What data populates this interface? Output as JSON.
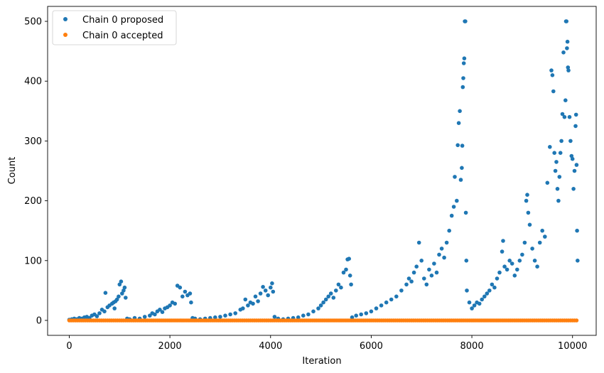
{
  "chart_data": {
    "type": "scatter",
    "title": "",
    "xlabel": "Iteration",
    "ylabel": "Count",
    "xlim": [
      -430,
      10470
    ],
    "ylim": [
      -25,
      525
    ],
    "xticks": [
      0,
      2000,
      4000,
      6000,
      8000,
      10000
    ],
    "yticks": [
      0,
      100,
      200,
      300,
      400,
      500
    ],
    "grid": false,
    "legend_position": "top-left",
    "colors": {
      "proposed": "#1f77b4",
      "accepted": "#ff7f0e"
    },
    "series": [
      {
        "name": "Chain 0 proposed",
        "color": "#1f77b4",
        "points": [
          [
            0,
            1
          ],
          [
            50,
            2
          ],
          [
            100,
            3
          ],
          [
            150,
            2
          ],
          [
            200,
            4
          ],
          [
            250,
            3
          ],
          [
            300,
            5
          ],
          [
            350,
            6
          ],
          [
            400,
            4
          ],
          [
            450,
            8
          ],
          [
            500,
            10
          ],
          [
            550,
            7
          ],
          [
            600,
            12
          ],
          [
            650,
            18
          ],
          [
            700,
            15
          ],
          [
            720,
            46
          ],
          [
            760,
            22
          ],
          [
            800,
            25
          ],
          [
            850,
            28
          ],
          [
            880,
            30
          ],
          [
            900,
            20
          ],
          [
            920,
            32
          ],
          [
            950,
            35
          ],
          [
            980,
            40
          ],
          [
            1000,
            60
          ],
          [
            1030,
            65
          ],
          [
            1050,
            45
          ],
          [
            1080,
            50
          ],
          [
            1100,
            55
          ],
          [
            1120,
            38
          ],
          [
            1150,
            3
          ],
          [
            1200,
            2
          ],
          [
            1300,
            4
          ],
          [
            1400,
            3
          ],
          [
            1500,
            6
          ],
          [
            1600,
            8
          ],
          [
            1650,
            12
          ],
          [
            1700,
            10
          ],
          [
            1750,
            15
          ],
          [
            1800,
            18
          ],
          [
            1850,
            14
          ],
          [
            1900,
            20
          ],
          [
            1950,
            22
          ],
          [
            2000,
            25
          ],
          [
            2050,
            30
          ],
          [
            2100,
            28
          ],
          [
            2150,
            58
          ],
          [
            2200,
            55
          ],
          [
            2250,
            40
          ],
          [
            2300,
            48
          ],
          [
            2350,
            42
          ],
          [
            2400,
            45
          ],
          [
            2420,
            30
          ],
          [
            2450,
            4
          ],
          [
            2500,
            3
          ],
          [
            2600,
            2
          ],
          [
            2700,
            3
          ],
          [
            2800,
            4
          ],
          [
            2900,
            5
          ],
          [
            3000,
            6
          ],
          [
            3100,
            8
          ],
          [
            3200,
            10
          ],
          [
            3300,
            12
          ],
          [
            3400,
            18
          ],
          [
            3450,
            20
          ],
          [
            3500,
            35
          ],
          [
            3550,
            25
          ],
          [
            3600,
            30
          ],
          [
            3650,
            28
          ],
          [
            3700,
            40
          ],
          [
            3750,
            32
          ],
          [
            3800,
            45
          ],
          [
            3850,
            56
          ],
          [
            3900,
            50
          ],
          [
            3950,
            42
          ],
          [
            4000,
            55
          ],
          [
            4030,
            62
          ],
          [
            4050,
            48
          ],
          [
            4080,
            6
          ],
          [
            4150,
            3
          ],
          [
            4250,
            2
          ],
          [
            4350,
            3
          ],
          [
            4450,
            4
          ],
          [
            4550,
            5
          ],
          [
            4650,
            8
          ],
          [
            4750,
            10
          ],
          [
            4850,
            15
          ],
          [
            4950,
            20
          ],
          [
            5000,
            25
          ],
          [
            5050,
            30
          ],
          [
            5100,
            35
          ],
          [
            5150,
            40
          ],
          [
            5200,
            45
          ],
          [
            5250,
            38
          ],
          [
            5300,
            50
          ],
          [
            5350,
            60
          ],
          [
            5400,
            55
          ],
          [
            5450,
            80
          ],
          [
            5500,
            85
          ],
          [
            5530,
            102
          ],
          [
            5560,
            103
          ],
          [
            5580,
            75
          ],
          [
            5600,
            60
          ],
          [
            5620,
            5
          ],
          [
            5700,
            8
          ],
          [
            5800,
            10
          ],
          [
            5900,
            12
          ],
          [
            6000,
            15
          ],
          [
            6100,
            20
          ],
          [
            6200,
            25
          ],
          [
            6300,
            30
          ],
          [
            6400,
            35
          ],
          [
            6500,
            40
          ],
          [
            6600,
            50
          ],
          [
            6700,
            60
          ],
          [
            6750,
            70
          ],
          [
            6800,
            65
          ],
          [
            6850,
            80
          ],
          [
            6900,
            90
          ],
          [
            6950,
            130
          ],
          [
            7000,
            100
          ],
          [
            7050,
            70
          ],
          [
            7100,
            60
          ],
          [
            7150,
            85
          ],
          [
            7200,
            75
          ],
          [
            7250,
            95
          ],
          [
            7300,
            80
          ],
          [
            7350,
            110
          ],
          [
            7400,
            120
          ],
          [
            7450,
            105
          ],
          [
            7500,
            130
          ],
          [
            7550,
            150
          ],
          [
            7600,
            175
          ],
          [
            7640,
            190
          ],
          [
            7660,
            240
          ],
          [
            7700,
            200
          ],
          [
            7720,
            293
          ],
          [
            7740,
            330
          ],
          [
            7760,
            350
          ],
          [
            7780,
            235
          ],
          [
            7800,
            255
          ],
          [
            7810,
            292
          ],
          [
            7820,
            390
          ],
          [
            7830,
            405
          ],
          [
            7840,
            430
          ],
          [
            7850,
            438
          ],
          [
            7860,
            500
          ],
          [
            7870,
            500
          ],
          [
            7880,
            180
          ],
          [
            7890,
            100
          ],
          [
            7900,
            50
          ],
          [
            7950,
            30
          ],
          [
            8000,
            20
          ],
          [
            8050,
            25
          ],
          [
            8100,
            30
          ],
          [
            8150,
            28
          ],
          [
            8200,
            35
          ],
          [
            8250,
            40
          ],
          [
            8300,
            45
          ],
          [
            8350,
            50
          ],
          [
            8400,
            60
          ],
          [
            8450,
            55
          ],
          [
            8500,
            70
          ],
          [
            8550,
            80
          ],
          [
            8600,
            115
          ],
          [
            8620,
            133
          ],
          [
            8650,
            90
          ],
          [
            8700,
            85
          ],
          [
            8750,
            100
          ],
          [
            8800,
            95
          ],
          [
            8850,
            75
          ],
          [
            8900,
            85
          ],
          [
            8950,
            100
          ],
          [
            9000,
            110
          ],
          [
            9050,
            130
          ],
          [
            9080,
            200
          ],
          [
            9100,
            210
          ],
          [
            9120,
            180
          ],
          [
            9150,
            160
          ],
          [
            9200,
            120
          ],
          [
            9250,
            100
          ],
          [
            9300,
            90
          ],
          [
            9350,
            130
          ],
          [
            9400,
            150
          ],
          [
            9450,
            140
          ],
          [
            9500,
            230
          ],
          [
            9550,
            290
          ],
          [
            9580,
            418
          ],
          [
            9600,
            410
          ],
          [
            9620,
            383
          ],
          [
            9640,
            280
          ],
          [
            9660,
            250
          ],
          [
            9680,
            265
          ],
          [
            9700,
            220
          ],
          [
            9720,
            200
          ],
          [
            9740,
            240
          ],
          [
            9760,
            280
          ],
          [
            9780,
            300
          ],
          [
            9800,
            345
          ],
          [
            9820,
            448
          ],
          [
            9840,
            340
          ],
          [
            9860,
            368
          ],
          [
            9870,
            500
          ],
          [
            9880,
            500
          ],
          [
            9890,
            455
          ],
          [
            9900,
            466
          ],
          [
            9910,
            423
          ],
          [
            9920,
            418
          ],
          [
            9940,
            340
          ],
          [
            9960,
            300
          ],
          [
            9980,
            275
          ],
          [
            10000,
            270
          ],
          [
            10020,
            220
          ],
          [
            10040,
            250
          ],
          [
            10060,
            325
          ],
          [
            10070,
            344
          ],
          [
            10080,
            260
          ],
          [
            10090,
            150
          ],
          [
            10100,
            100
          ]
        ]
      },
      {
        "name": "Chain 0 accepted",
        "color": "#ff7f0e",
        "x_range": [
          0,
          10100
        ],
        "value": 0
      }
    ]
  }
}
